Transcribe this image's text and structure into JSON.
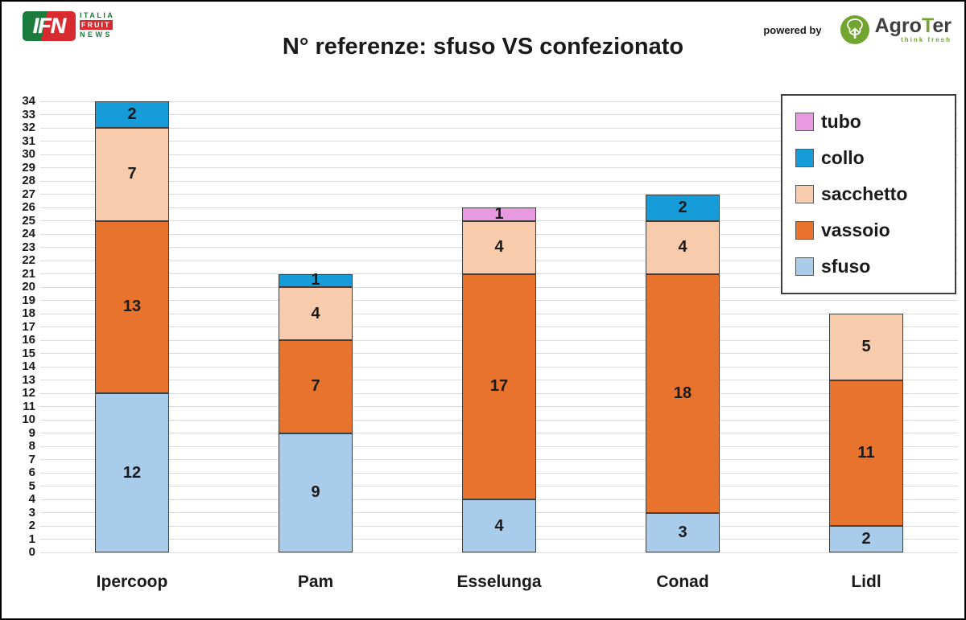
{
  "header": {
    "brand": {
      "ifn": "IFN",
      "italia": "ITALIA",
      "fruit": "FRUIT",
      "news": "NEWS"
    },
    "powered_by": "powered by",
    "agroter": {
      "name_prefix": "Agro",
      "name_t": "T",
      "name_suffix": "er",
      "tagline": "think fresh"
    }
  },
  "chart_data": {
    "type": "bar",
    "stacked": true,
    "title": "N° referenze: sfuso VS confezionato",
    "categories": [
      "Ipercoop",
      "Pam",
      "Esselunga",
      "Conad",
      "Lidl"
    ],
    "series": [
      {
        "name": "sfuso",
        "color": "#A9CCEA",
        "values": [
          12,
          9,
          4,
          3,
          2
        ]
      },
      {
        "name": "vassoio",
        "color": "#E8732C",
        "values": [
          13,
          7,
          17,
          18,
          11
        ]
      },
      {
        "name": "sacchetto",
        "color": "#F7CBAB",
        "values": [
          7,
          4,
          4,
          4,
          5
        ]
      },
      {
        "name": "collo",
        "color": "#169CD8",
        "values": [
          2,
          1,
          0,
          2,
          0
        ]
      },
      {
        "name": "tubo",
        "color": "#E79ADF",
        "values": [
          0,
          0,
          1,
          0,
          0
        ]
      }
    ],
    "totals": [
      34,
      21,
      26,
      27,
      18
    ],
    "legend_order": [
      "tubo",
      "collo",
      "sacchetto",
      "vassoio",
      "sfuso"
    ],
    "xlabel": "",
    "ylabel": "",
    "ylim": [
      0,
      34
    ],
    "ytick_step": 1,
    "grid": true,
    "legend_position": "top-right",
    "gridline_color": "#DCDCDC",
    "bar_border_color": "#3F3F3F"
  }
}
